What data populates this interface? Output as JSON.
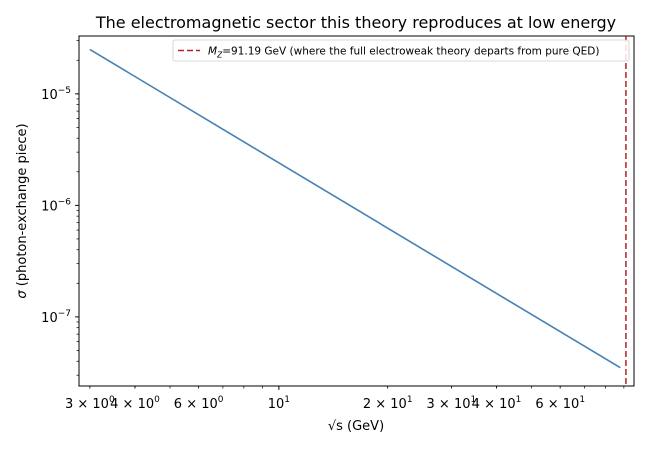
{
  "chart_data": {
    "type": "line",
    "title": "The electromagnetic sector this theory reproduces at low energy",
    "xlabel": "√s (GeV)",
    "ylabel": "σ (photon-exchange piece)",
    "xscale": "log",
    "yscale": "log",
    "xlim": [
      2.8,
      96
    ],
    "ylim": [
      2.4e-08,
      3.3e-05
    ],
    "grid": false,
    "legend_placement": "top-right",
    "series": [
      {
        "name": "",
        "color": "#4682b4",
        "x": [
          3.0,
          88.0
        ],
        "y": [
          2.5e-05,
          3.5e-08
        ]
      }
    ],
    "reference_line": {
      "axis": "x",
      "value": 91.19,
      "color": "#b22222",
      "style": "dashed",
      "label_prefix": "M",
      "label_sub": "Z",
      "label_rest": "=91.19 GeV (where the full electroweak theory departs from pure QED)"
    },
    "x_ticks": [
      {
        "value": 3,
        "mantissa": "3",
        "exp": "0"
      },
      {
        "value": 4,
        "mantissa": "4",
        "exp": "0"
      },
      {
        "value": 6,
        "mantissa": "6",
        "exp": "0"
      },
      {
        "value": 10,
        "mantissa": "",
        "exp": "1"
      },
      {
        "value": 20,
        "mantissa": "2",
        "exp": "1"
      },
      {
        "value": 30,
        "mantissa": "3",
        "exp": "1"
      },
      {
        "value": 40,
        "mantissa": "4",
        "exp": "1"
      },
      {
        "value": 60,
        "mantissa": "6",
        "exp": "1"
      }
    ],
    "y_ticks": [
      {
        "value": 1e-05,
        "exp": "−5"
      },
      {
        "value": 1e-06,
        "exp": "−6"
      },
      {
        "value": 1e-07,
        "exp": "−7"
      }
    ]
  }
}
